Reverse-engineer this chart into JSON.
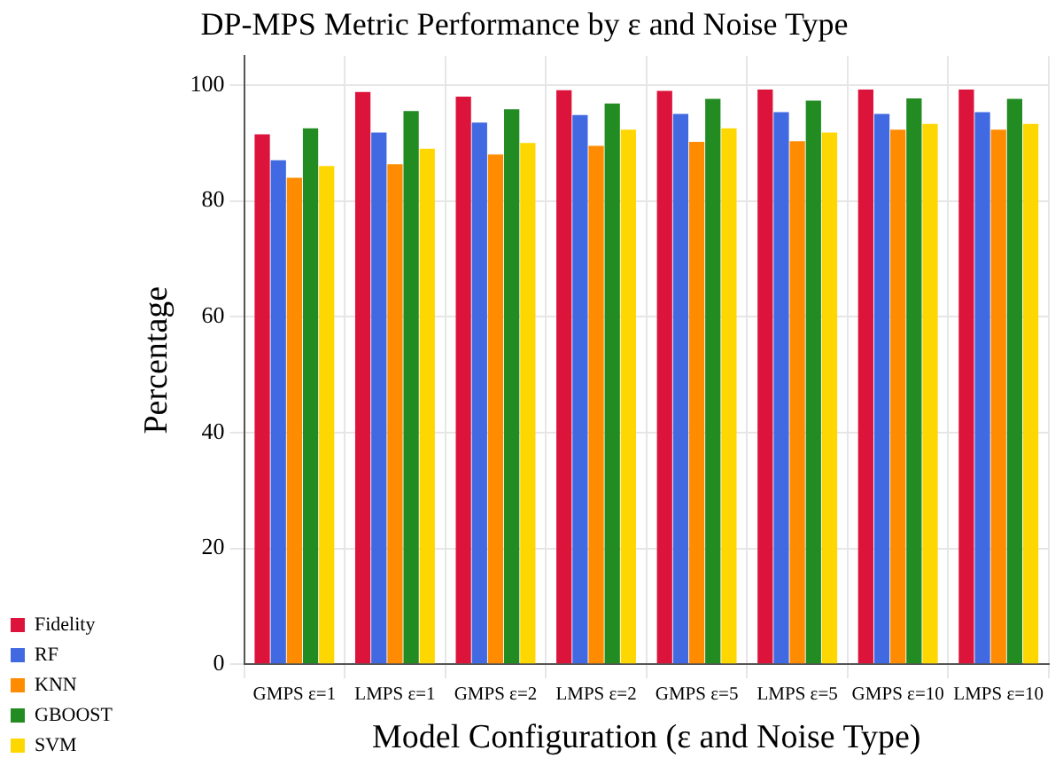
{
  "chart_data": {
    "type": "bar",
    "title": "DP-MPS Metric Performance by ε and Noise Type",
    "xlabel": "Model Configuration (ε and Noise Type)",
    "ylabel": "Percentage",
    "categories": [
      "GMPS ε=1",
      "LMPS ε=1",
      "GMPS ε=2",
      "LMPS ε=2",
      "GMPS ε=5",
      "LMPS ε=5",
      "GMPS ε=10",
      "LMPS ε=10"
    ],
    "series": [
      {
        "name": "Fidelity",
        "color": "#dc143c",
        "values": [
          91.5,
          98.8,
          98,
          99.1,
          99,
          99.2,
          99.2,
          99.2
        ]
      },
      {
        "name": "RF",
        "color": "#4169e1",
        "values": [
          87,
          91.8,
          93.5,
          94.8,
          95,
          95.3,
          95,
          95.3
        ]
      },
      {
        "name": "KNN",
        "color": "#ff8c00",
        "values": [
          84,
          86.3,
          88,
          89.5,
          90.2,
          90.3,
          92.3,
          92.3
        ]
      },
      {
        "name": "GBOOST",
        "color": "#228b22",
        "values": [
          92.5,
          95.5,
          95.8,
          96.8,
          97.6,
          97.3,
          97.7,
          97.6
        ]
      },
      {
        "name": "SVM",
        "color": "#ffd700",
        "values": [
          86,
          89,
          90,
          92.3,
          92.5,
          91.8,
          93.3,
          93.3
        ]
      }
    ],
    "ylim": [
      0,
      105
    ],
    "yticks": [
      0,
      20,
      40,
      60,
      80,
      100
    ],
    "grid": true,
    "legend": "bottom left"
  }
}
